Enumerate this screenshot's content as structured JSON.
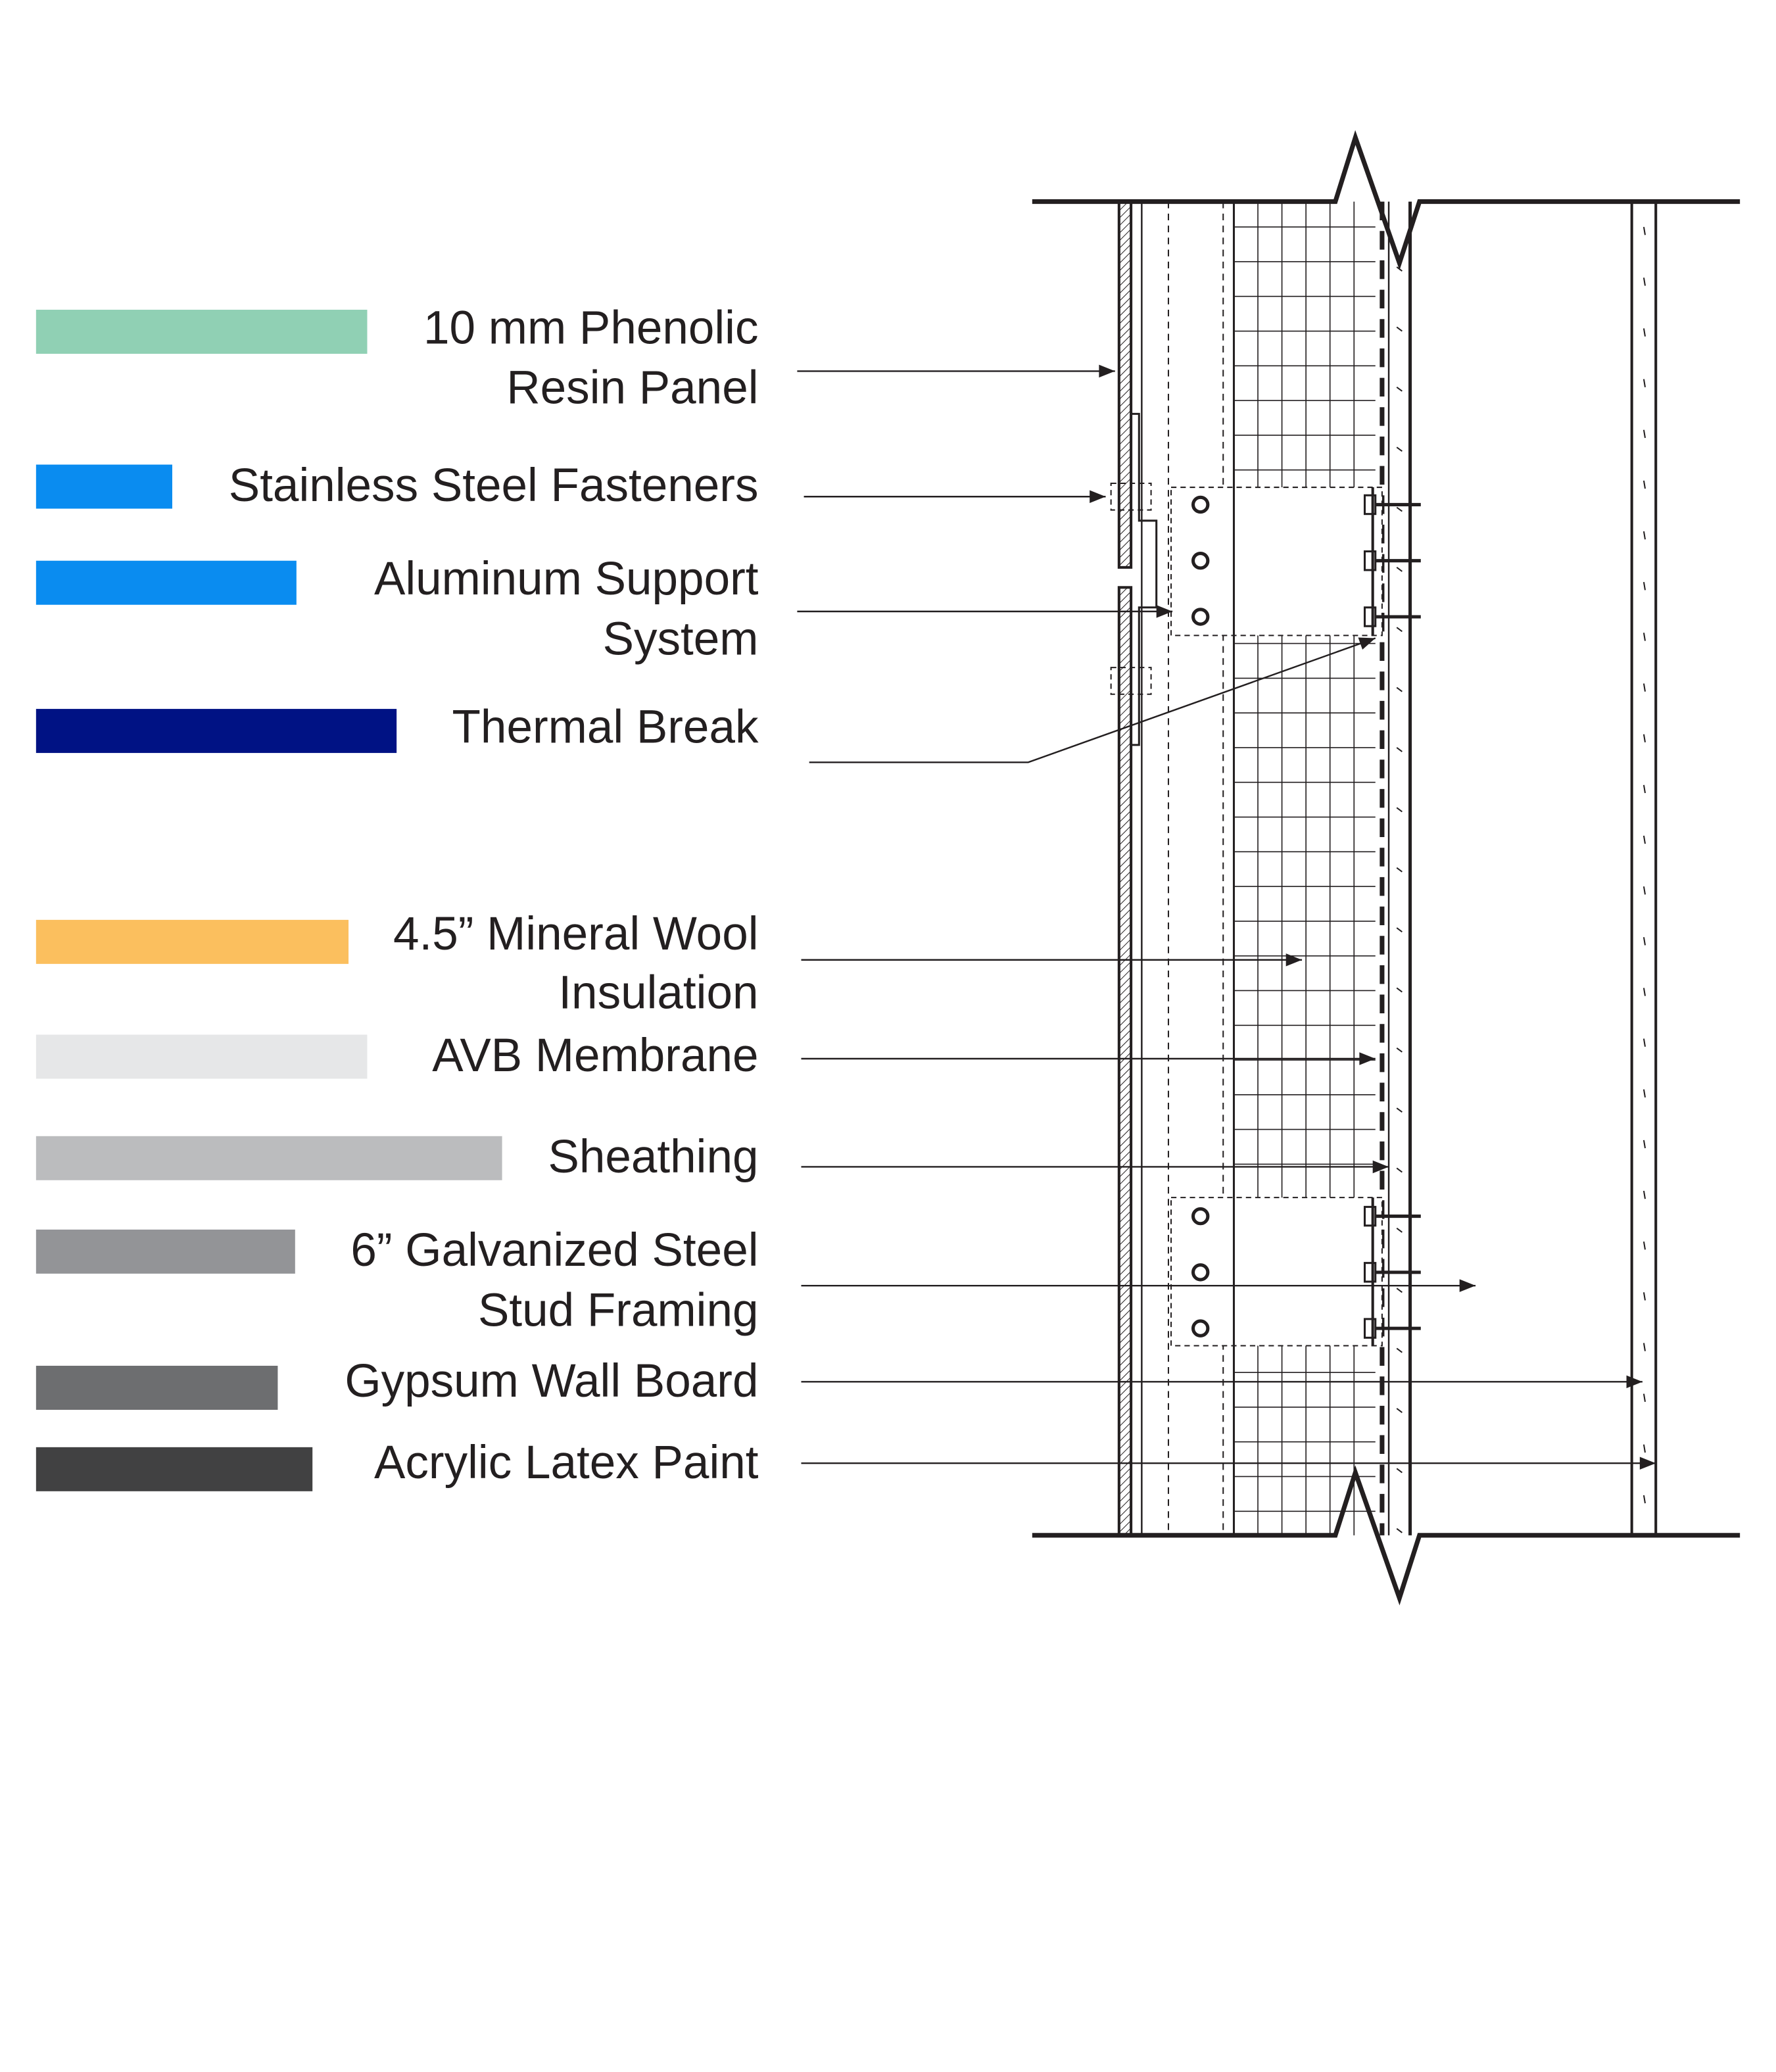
{
  "legend": [
    {
      "lines": [
        "10 mm Phenolic",
        "Resin Panel"
      ],
      "color": "#90d0b4"
    },
    {
      "lines": [
        "Stainless Steel Fasteners"
      ],
      "color": "#0a8cf0"
    },
    {
      "lines": [
        "Aluminum Support",
        "System"
      ],
      "color": "#0a8cf0"
    },
    {
      "lines": [
        "Thermal Break"
      ],
      "color": "#001284"
    },
    {
      "lines": [
        "4.5” Mineral Wool",
        "Insulation"
      ],
      "color": "#fbbf5e"
    },
    {
      "lines": [
        "AVB Membrane"
      ],
      "color": "#e6e7e8"
    },
    {
      "lines": [
        "Sheathing"
      ],
      "color": "#bbbcbe"
    },
    {
      "lines": [
        "6” Galvanized Steel",
        "Stud Framing"
      ],
      "color": "#939497"
    },
    {
      "lines": [
        "Gypsum Wall Board"
      ],
      "color": "#6d6e70"
    },
    {
      "lines": [
        "Acrylic Latex Paint"
      ],
      "color": "#414142"
    }
  ]
}
